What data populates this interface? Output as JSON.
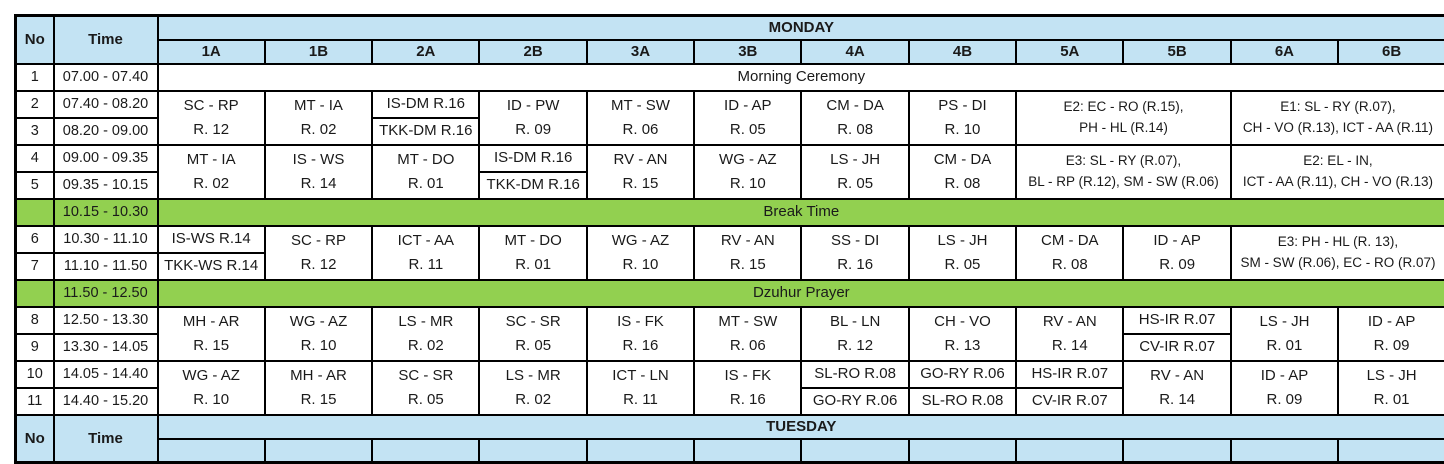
{
  "colors": {
    "header_blue": "#C3E3F3",
    "highlight_green": "#92D050",
    "border": "#000000"
  },
  "table": {
    "corner": {
      "no": "No",
      "time": "Time"
    },
    "day": "MONDAY",
    "next_day": "TUESDAY",
    "classes": [
      "1A",
      "1B",
      "2A",
      "2B",
      "3A",
      "3B",
      "4A",
      "4B",
      "5A",
      "5B",
      "6A",
      "6B"
    ],
    "segments": [
      {
        "kind": "full",
        "no": "1",
        "time": "07.00 - 07.40",
        "label": "Morning Ceremony",
        "highlight": false
      },
      {
        "kind": "band",
        "rows": [
          {
            "no": "2",
            "time": "07.40 - 08.20"
          },
          {
            "no": "3",
            "time": "08.20 - 09.00"
          }
        ],
        "cells": [
          {
            "type": "merged",
            "span": 1,
            "lines": [
              "SC - RP",
              "R. 12"
            ]
          },
          {
            "type": "merged",
            "span": 1,
            "lines": [
              "MT - IA",
              "R. 02"
            ]
          },
          {
            "type": "split",
            "span": 1,
            "top": "IS-DM R.16",
            "bottom": "TKK-DM R.16"
          },
          {
            "type": "merged",
            "span": 1,
            "lines": [
              "ID - PW",
              "R. 09"
            ]
          },
          {
            "type": "merged",
            "span": 1,
            "lines": [
              "MT - SW",
              "R. 06"
            ]
          },
          {
            "type": "merged",
            "span": 1,
            "lines": [
              "ID - AP",
              "R. 05"
            ]
          },
          {
            "type": "merged",
            "span": 1,
            "lines": [
              "CM - DA",
              "R. 08"
            ]
          },
          {
            "type": "merged",
            "span": 1,
            "lines": [
              "PS - DI",
              "R. 10"
            ]
          },
          {
            "type": "merged",
            "span": 2,
            "lines": [
              "E2: EC - RO (R.15),",
              "PH - HL (R.14)"
            ]
          },
          {
            "type": "merged",
            "span": 2,
            "lines": [
              "E1: SL - RY (R.07),",
              "CH - VO (R.13), ICT - AA (R.11)"
            ]
          }
        ]
      },
      {
        "kind": "band",
        "rows": [
          {
            "no": "4",
            "time": "09.00 - 09.35"
          },
          {
            "no": "5",
            "time": "09.35 - 10.15"
          }
        ],
        "cells": [
          {
            "type": "merged",
            "span": 1,
            "lines": [
              "MT - IA",
              "R. 02"
            ]
          },
          {
            "type": "merged",
            "span": 1,
            "lines": [
              "IS - WS",
              "R. 14"
            ]
          },
          {
            "type": "merged",
            "span": 1,
            "lines": [
              "MT - DO",
              "R. 01"
            ]
          },
          {
            "type": "split",
            "span": 1,
            "top": "IS-DM R.16",
            "bottom": "TKK-DM R.16"
          },
          {
            "type": "merged",
            "span": 1,
            "lines": [
              "RV - AN",
              "R. 15"
            ]
          },
          {
            "type": "merged",
            "span": 1,
            "lines": [
              "WG - AZ",
              "R. 10"
            ]
          },
          {
            "type": "merged",
            "span": 1,
            "lines": [
              "LS - JH",
              "R. 05"
            ]
          },
          {
            "type": "merged",
            "span": 1,
            "lines": [
              "CM - DA",
              "R. 08"
            ]
          },
          {
            "type": "merged",
            "span": 2,
            "lines": [
              "E3: SL - RY (R.07),",
              "BL - RP (R.12), SM - SW (R.06)"
            ]
          },
          {
            "type": "merged",
            "span": 2,
            "lines": [
              "E2: EL - IN,",
              "ICT - AA (R.11), CH - VO (R.13)"
            ]
          }
        ]
      },
      {
        "kind": "full",
        "no": "",
        "time": "10.15 - 10.30",
        "label": "Break Time",
        "highlight": true
      },
      {
        "kind": "band",
        "rows": [
          {
            "no": "6",
            "time": "10.30 - 11.10"
          },
          {
            "no": "7",
            "time": "11.10 - 11.50"
          }
        ],
        "cells": [
          {
            "type": "split",
            "span": 1,
            "top": "IS-WS R.14",
            "bottom": "TKK-WS R.14"
          },
          {
            "type": "merged",
            "span": 1,
            "lines": [
              "SC - RP",
              "R. 12"
            ]
          },
          {
            "type": "merged",
            "span": 1,
            "lines": [
              "ICT - AA",
              "R. 11"
            ]
          },
          {
            "type": "merged",
            "span": 1,
            "lines": [
              "MT - DO",
              "R. 01"
            ]
          },
          {
            "type": "merged",
            "span": 1,
            "lines": [
              "WG - AZ",
              "R. 10"
            ]
          },
          {
            "type": "merged",
            "span": 1,
            "lines": [
              "RV - AN",
              "R. 15"
            ]
          },
          {
            "type": "merged",
            "span": 1,
            "lines": [
              "SS - DI",
              "R. 16"
            ]
          },
          {
            "type": "merged",
            "span": 1,
            "lines": [
              "LS - JH",
              "R. 05"
            ]
          },
          {
            "type": "merged",
            "span": 1,
            "lines": [
              "CM - DA",
              "R. 08"
            ]
          },
          {
            "type": "merged",
            "span": 1,
            "lines": [
              "ID - AP",
              "R. 09"
            ]
          },
          {
            "type": "merged",
            "span": 2,
            "lines": [
              "E3: PH - HL (R. 13),",
              "SM - SW (R.06), EC - RO (R.07)"
            ]
          }
        ]
      },
      {
        "kind": "full",
        "no": "",
        "time": "11.50 - 12.50",
        "label": "Dzuhur Prayer",
        "highlight": true
      },
      {
        "kind": "band",
        "rows": [
          {
            "no": "8",
            "time": "12.50 - 13.30"
          },
          {
            "no": "9",
            "time": "13.30 - 14.05"
          }
        ],
        "cells": [
          {
            "type": "merged",
            "span": 1,
            "lines": [
              "MH - AR",
              "R. 15"
            ]
          },
          {
            "type": "merged",
            "span": 1,
            "lines": [
              "WG - AZ",
              "R. 10"
            ]
          },
          {
            "type": "merged",
            "span": 1,
            "lines": [
              "LS - MR",
              "R. 02"
            ]
          },
          {
            "type": "merged",
            "span": 1,
            "lines": [
              "SC - SR",
              "R. 05"
            ]
          },
          {
            "type": "merged",
            "span": 1,
            "lines": [
              "IS - FK",
              "R. 16"
            ]
          },
          {
            "type": "merged",
            "span": 1,
            "lines": [
              "MT - SW",
              "R. 06"
            ]
          },
          {
            "type": "merged",
            "span": 1,
            "lines": [
              "BL - LN",
              "R. 12"
            ]
          },
          {
            "type": "merged",
            "span": 1,
            "lines": [
              "CH - VO",
              "R. 13"
            ]
          },
          {
            "type": "merged",
            "span": 1,
            "lines": [
              "RV - AN",
              "R. 14"
            ]
          },
          {
            "type": "split",
            "span": 1,
            "top": "HS-IR R.07",
            "bottom": "CV-IR R.07"
          },
          {
            "type": "merged",
            "span": 1,
            "lines": [
              "LS - JH",
              "R. 01"
            ]
          },
          {
            "type": "merged",
            "span": 1,
            "lines": [
              "ID - AP",
              "R. 09"
            ]
          }
        ]
      },
      {
        "kind": "band",
        "rows": [
          {
            "no": "10",
            "time": "14.05 - 14.40"
          },
          {
            "no": "11",
            "time": "14.40 - 15.20"
          }
        ],
        "cells": [
          {
            "type": "merged",
            "span": 1,
            "lines": [
              "WG - AZ",
              "R. 10"
            ]
          },
          {
            "type": "merged",
            "span": 1,
            "lines": [
              "MH - AR",
              "R. 15"
            ]
          },
          {
            "type": "merged",
            "span": 1,
            "lines": [
              "SC - SR",
              "R. 05"
            ]
          },
          {
            "type": "merged",
            "span": 1,
            "lines": [
              "LS - MR",
              "R. 02"
            ]
          },
          {
            "type": "merged",
            "span": 1,
            "lines": [
              "ICT - LN",
              "R. 11"
            ]
          },
          {
            "type": "merged",
            "span": 1,
            "lines": [
              "IS - FK",
              "R. 16"
            ]
          },
          {
            "type": "split",
            "span": 1,
            "top": "SL-RO R.08",
            "bottom": "GO-RY R.06"
          },
          {
            "type": "split",
            "span": 1,
            "top": "GO-RY R.06",
            "bottom": "SL-RO R.08"
          },
          {
            "type": "split",
            "span": 1,
            "top": "HS-IR R.07",
            "bottom": "CV-IR R.07"
          },
          {
            "type": "merged",
            "span": 1,
            "lines": [
              "RV - AN",
              "R. 14"
            ]
          },
          {
            "type": "merged",
            "span": 1,
            "lines": [
              "ID - AP",
              "R. 09"
            ]
          },
          {
            "type": "merged",
            "span": 1,
            "lines": [
              "LS - JH",
              "R. 01"
            ]
          }
        ]
      }
    ]
  }
}
